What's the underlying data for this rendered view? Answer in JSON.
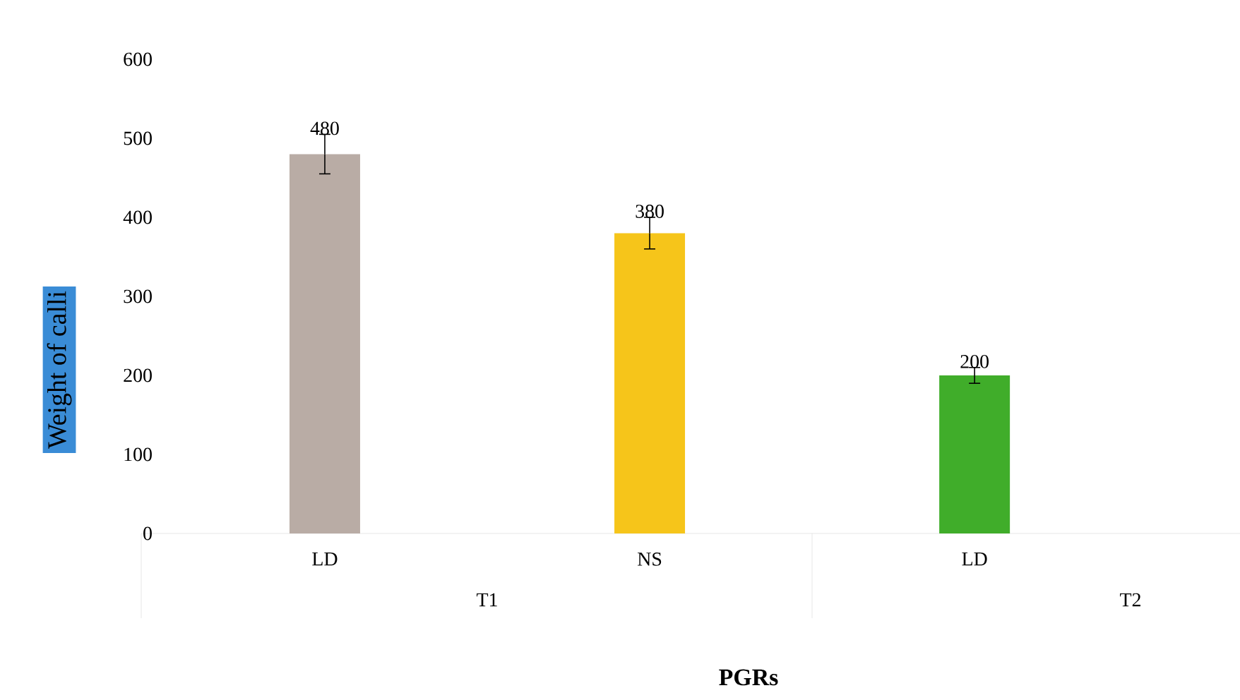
{
  "chart_data": {
    "type": "bar",
    "xlabel": "PGRs",
    "ylabel": "Weight of calli",
    "categories": [
      "LD",
      "NS",
      "LD"
    ],
    "values": [
      480,
      380,
      200
    ],
    "colors": [
      "#b9aca5",
      "#f6c51a",
      "#40ad2a"
    ],
    "errors": [
      25,
      20,
      10
    ],
    "data_labels": true,
    "ylim": [
      0,
      600
    ],
    "yticks": [
      0,
      100,
      200,
      300,
      400,
      500,
      600
    ],
    "annotations": [
      "T1",
      "T2"
    ]
  }
}
